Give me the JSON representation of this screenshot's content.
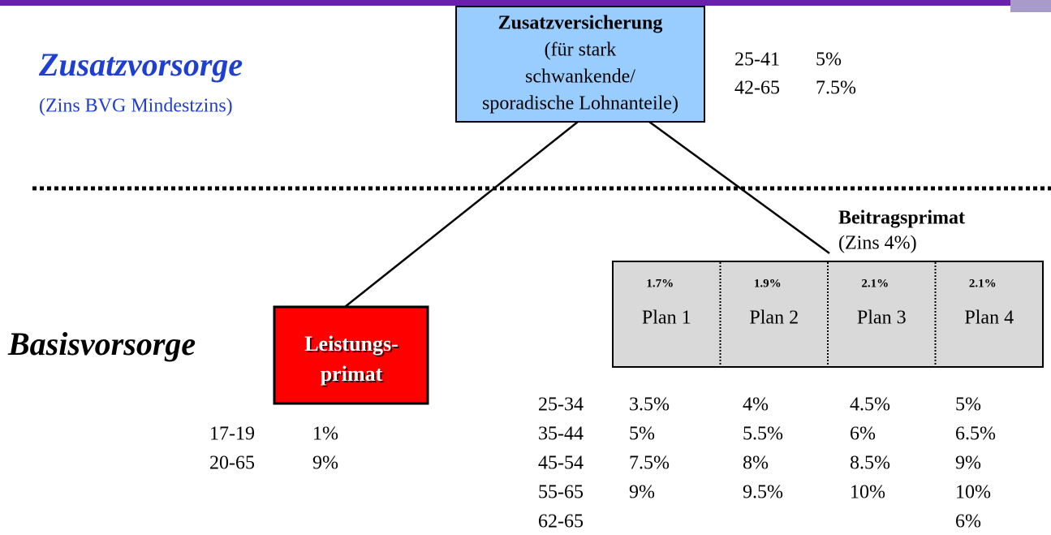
{
  "zusatz": {
    "title": "Zusatzvorsorge",
    "subtitle": "(Zins BVG Mindestzins)",
    "box": {
      "lines": [
        "Zusatzversicherung",
        "(für stark",
        "schwankende/",
        "sporadische Lohnanteile)"
      ]
    },
    "rates": [
      [
        "25-41",
        "5%"
      ],
      [
        "42-65",
        "7.5%"
      ]
    ]
  },
  "basis": {
    "title": "Basisvorsorge",
    "leistung": {
      "lines": [
        "Leistungs-",
        "primat"
      ],
      "rates": [
        [
          "17-19",
          "1%"
        ],
        [
          "20-65",
          "9%"
        ]
      ]
    },
    "beitrag": {
      "title": "Beitragsprimat",
      "subtitle": "(Zins 4%)",
      "plans": [
        {
          "rate": "1.7%",
          "name": "Plan 1"
        },
        {
          "rate": "1.9%",
          "name": "Plan 2"
        },
        {
          "rate": "2.1%",
          "name": "Plan 3"
        },
        {
          "rate": "2.1%",
          "name": "Plan 4"
        }
      ],
      "rows": [
        [
          "25-34",
          "3.5%",
          "4%",
          "4.5%",
          "5%"
        ],
        [
          "35-44",
          "5%",
          "5.5%",
          "6%",
          "6.5%"
        ],
        [
          "45-54",
          "7.5%",
          "8%",
          "8.5%",
          "9%"
        ],
        [
          "55-65",
          "9%",
          "9.5%",
          "10%",
          "10%"
        ],
        [
          "62-65",
          null,
          null,
          null,
          "6%"
        ]
      ]
    }
  }
}
